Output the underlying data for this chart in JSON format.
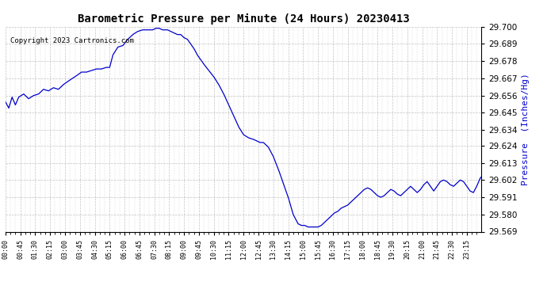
{
  "title": "Barometric Pressure per Minute (24 Hours) 20230413",
  "copyright": "Copyright 2023 Cartronics.com",
  "ylabel": "Pressure  (Inches/Hg)",
  "ylabel_color": "#0000cc",
  "line_color": "#0000cc",
  "background_color": "#ffffff",
  "grid_color": "#aaaaaa",
  "ylim": [
    29.569,
    29.7
  ],
  "yticks": [
    29.569,
    29.58,
    29.591,
    29.602,
    29.613,
    29.624,
    29.634,
    29.645,
    29.656,
    29.667,
    29.678,
    29.689,
    29.7
  ],
  "xtick_labels": [
    "00:00",
    "00:45",
    "01:30",
    "02:15",
    "03:00",
    "03:45",
    "04:30",
    "05:15",
    "06:00",
    "06:45",
    "07:30",
    "08:15",
    "09:00",
    "09:45",
    "10:30",
    "11:15",
    "12:00",
    "12:45",
    "13:30",
    "14:15",
    "15:00",
    "15:45",
    "16:30",
    "17:15",
    "18:00",
    "18:45",
    "19:30",
    "20:15",
    "21:00",
    "21:45",
    "22:30",
    "23:15"
  ],
  "pressure_keypoints": [
    [
      0,
      29.652
    ],
    [
      10,
      29.648
    ],
    [
      20,
      29.655
    ],
    [
      30,
      29.65
    ],
    [
      40,
      29.655
    ],
    [
      55,
      29.657
    ],
    [
      70,
      29.654
    ],
    [
      85,
      29.656
    ],
    [
      100,
      29.657
    ],
    [
      115,
      29.66
    ],
    [
      130,
      29.659
    ],
    [
      145,
      29.661
    ],
    [
      160,
      29.66
    ],
    [
      175,
      29.663
    ],
    [
      195,
      29.666
    ],
    [
      210,
      29.668
    ],
    [
      230,
      29.671
    ],
    [
      245,
      29.671
    ],
    [
      260,
      29.672
    ],
    [
      275,
      29.673
    ],
    [
      290,
      29.673
    ],
    [
      305,
      29.674
    ],
    [
      315,
      29.674
    ],
    [
      325,
      29.682
    ],
    [
      340,
      29.687
    ],
    [
      355,
      29.688
    ],
    [
      370,
      29.692
    ],
    [
      385,
      29.695
    ],
    [
      400,
      29.697
    ],
    [
      415,
      29.698
    ],
    [
      430,
      29.698
    ],
    [
      445,
      29.698
    ],
    [
      455,
      29.699
    ],
    [
      465,
      29.699
    ],
    [
      475,
      29.698
    ],
    [
      490,
      29.698
    ],
    [
      500,
      29.697
    ],
    [
      510,
      29.696
    ],
    [
      520,
      29.695
    ],
    [
      530,
      29.695
    ],
    [
      540,
      29.693
    ],
    [
      550,
      29.692
    ],
    [
      560,
      29.689
    ],
    [
      570,
      29.686
    ],
    [
      580,
      29.682
    ],
    [
      590,
      29.679
    ],
    [
      600,
      29.676
    ],
    [
      615,
      29.672
    ],
    [
      630,
      29.668
    ],
    [
      645,
      29.663
    ],
    [
      660,
      29.657
    ],
    [
      675,
      29.65
    ],
    [
      690,
      29.643
    ],
    [
      705,
      29.636
    ],
    [
      720,
      29.631
    ],
    [
      735,
      29.629
    ],
    [
      750,
      29.628
    ],
    [
      760,
      29.627
    ],
    [
      770,
      29.626
    ],
    [
      780,
      29.626
    ],
    [
      795,
      29.623
    ],
    [
      810,
      29.617
    ],
    [
      825,
      29.609
    ],
    [
      840,
      29.6
    ],
    [
      855,
      29.591
    ],
    [
      870,
      29.58
    ],
    [
      885,
      29.574
    ],
    [
      895,
      29.573
    ],
    [
      905,
      29.573
    ],
    [
      915,
      29.572
    ],
    [
      925,
      29.572
    ],
    [
      935,
      29.572
    ],
    [
      945,
      29.572
    ],
    [
      955,
      29.573
    ],
    [
      965,
      29.575
    ],
    [
      975,
      29.577
    ],
    [
      985,
      29.579
    ],
    [
      995,
      29.581
    ],
    [
      1005,
      29.582
    ],
    [
      1015,
      29.584
    ],
    [
      1025,
      29.585
    ],
    [
      1035,
      29.586
    ],
    [
      1045,
      29.588
    ],
    [
      1055,
      29.59
    ],
    [
      1065,
      29.592
    ],
    [
      1075,
      29.594
    ],
    [
      1085,
      29.596
    ],
    [
      1095,
      29.597
    ],
    [
      1105,
      29.596
    ],
    [
      1115,
      29.594
    ],
    [
      1125,
      29.592
    ],
    [
      1135,
      29.591
    ],
    [
      1145,
      29.592
    ],
    [
      1155,
      29.594
    ],
    [
      1165,
      29.596
    ],
    [
      1175,
      29.595
    ],
    [
      1185,
      29.593
    ],
    [
      1195,
      29.592
    ],
    [
      1205,
      29.594
    ],
    [
      1215,
      29.596
    ],
    [
      1225,
      29.598
    ],
    [
      1235,
      29.596
    ],
    [
      1245,
      29.594
    ],
    [
      1255,
      29.596
    ],
    [
      1265,
      29.599
    ],
    [
      1275,
      29.601
    ],
    [
      1285,
      29.598
    ],
    [
      1295,
      29.595
    ],
    [
      1305,
      29.598
    ],
    [
      1315,
      29.601
    ],
    [
      1325,
      29.602
    ],
    [
      1335,
      29.601
    ],
    [
      1345,
      29.599
    ],
    [
      1355,
      29.598
    ],
    [
      1365,
      29.6
    ],
    [
      1375,
      29.602
    ],
    [
      1385,
      29.601
    ],
    [
      1395,
      29.598
    ],
    [
      1405,
      29.595
    ],
    [
      1415,
      29.594
    ],
    [
      1425,
      29.598
    ],
    [
      1435,
      29.603
    ],
    [
      1439,
      29.604
    ]
  ]
}
